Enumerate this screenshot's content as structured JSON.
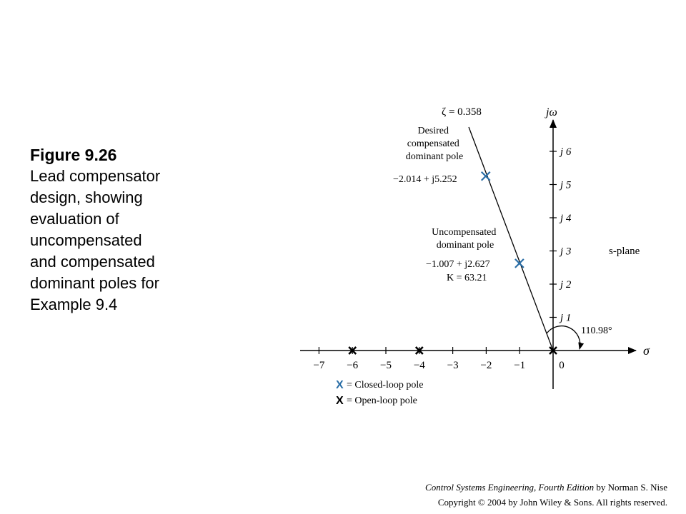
{
  "caption": {
    "title": "Figure 9.26",
    "lines": [
      "Lead compensator",
      "design, showing",
      "evaluation of",
      "uncompensated",
      "and compensated",
      "dominant poles for",
      "Example 9.4"
    ]
  },
  "diagram": {
    "axis_labels": {
      "imag": "jω",
      "real": "σ",
      "plane": "s-plane"
    },
    "real_ticks": [
      "−7",
      "−6",
      "−5",
      "−4",
      "−3",
      "−2",
      "−1",
      "0"
    ],
    "imag_ticks": [
      "j 1",
      "j 2",
      "j 3",
      "j 4",
      "j 5",
      "j 6"
    ],
    "zeta_label": "ζ = 0.358",
    "angle_label": "110.98°",
    "compensated": {
      "lines": [
        "Desired",
        "compensated",
        "dominant pole"
      ],
      "value": "−2.014 + j5.252",
      "pole": {
        "re": -2.014,
        "im": 5.252
      }
    },
    "uncompensated": {
      "lines": [
        "Uncompensated",
        "dominant pole"
      ],
      "value": "−1.007 + j2.627",
      "gain": "K = 63.21",
      "pole": {
        "re": -1.007,
        "im": 2.627
      }
    },
    "open_loop_poles": [
      -6,
      -4,
      0
    ],
    "legend": {
      "closed_loop": "= Closed-loop pole",
      "open_loop": "= Open-loop pole"
    },
    "colors": {
      "closed_loop": "#2a6ea6",
      "open_loop": "#000000"
    }
  },
  "credits": {
    "book_title": "Control Systems Engineering, Fourth Edition",
    "author": " by Norman S. Nise",
    "copyright": "Copyright © 2004 by John Wiley & Sons. All rights reserved."
  }
}
